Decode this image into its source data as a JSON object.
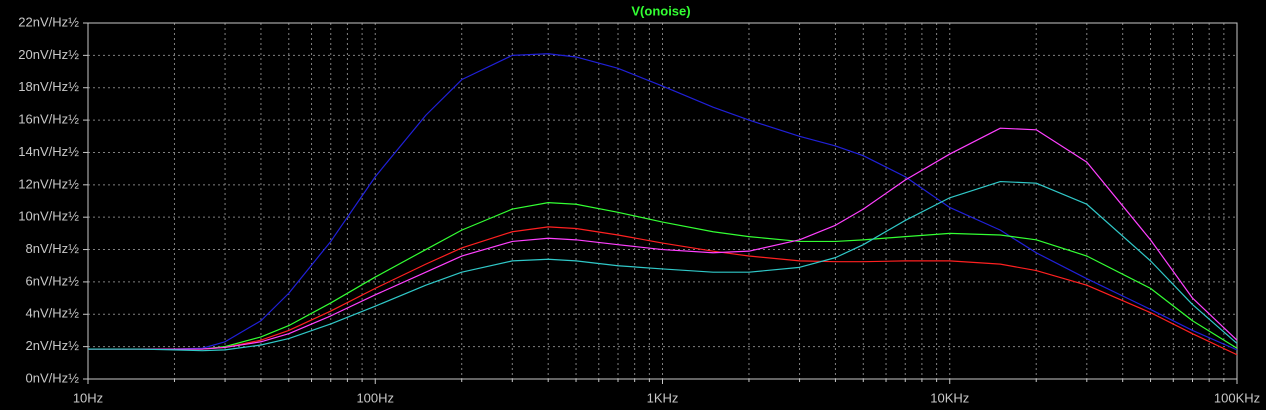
{
  "chart_data": {
    "type": "line",
    "title": "V(onoise)",
    "title_color": "#33ff33",
    "xscale": "log",
    "grid": true,
    "xlim": [
      10,
      100000
    ],
    "xticks": [
      {
        "value": 10,
        "label": "10Hz"
      },
      {
        "value": 100,
        "label": "100Hz"
      },
      {
        "value": 1000,
        "label": "1KHz"
      },
      {
        "value": 10000,
        "label": "10KHz"
      },
      {
        "value": 100000,
        "label": "100KHz"
      }
    ],
    "x_minor_ticks": [
      20,
      30,
      40,
      50,
      60,
      70,
      80,
      90,
      200,
      300,
      400,
      500,
      600,
      700,
      800,
      900,
      2000,
      3000,
      4000,
      5000,
      6000,
      7000,
      8000,
      9000,
      20000,
      30000,
      40000,
      50000,
      60000,
      70000,
      80000,
      90000
    ],
    "ylim": [
      0,
      22
    ],
    "yticks": [
      {
        "value": 0,
        "label": "0nV/Hz½"
      },
      {
        "value": 2,
        "label": "2nV/Hz½"
      },
      {
        "value": 4,
        "label": "4nV/Hz½"
      },
      {
        "value": 6,
        "label": "6nV/Hz½"
      },
      {
        "value": 8,
        "label": "8nV/Hz½"
      },
      {
        "value": 10,
        "label": "10nV/Hz½"
      },
      {
        "value": 12,
        "label": "12nV/Hz½"
      },
      {
        "value": 14,
        "label": "14nV/Hz½"
      },
      {
        "value": 16,
        "label": "16nV/Hz½"
      },
      {
        "value": 18,
        "label": "18nV/Hz½"
      },
      {
        "value": 20,
        "label": "20nV/Hz½"
      },
      {
        "value": 22,
        "label": "22nV/Hz½"
      }
    ],
    "x": [
      10,
      15,
      20,
      25,
      30,
      40,
      50,
      70,
      100,
      150,
      200,
      300,
      400,
      500,
      700,
      1000,
      1500,
      2000,
      3000,
      4000,
      5000,
      7000,
      10000,
      15000,
      20000,
      30000,
      50000,
      70000,
      100000
    ],
    "series": [
      {
        "color": "#2020d8",
        "values": [
          1.85,
          1.85,
          1.85,
          1.9,
          2.3,
          3.6,
          5.3,
          8.5,
          12.5,
          16.3,
          18.5,
          20.0,
          20.1,
          19.9,
          19.2,
          18.1,
          16.8,
          16.0,
          15.0,
          14.4,
          13.8,
          12.5,
          10.6,
          9.2,
          7.8,
          6.2,
          4.3,
          3.0,
          1.8
        ]
      },
      {
        "color": "#33ff33",
        "values": [
          1.85,
          1.85,
          1.85,
          1.85,
          2.0,
          2.6,
          3.3,
          4.7,
          6.3,
          8.0,
          9.2,
          10.5,
          10.9,
          10.8,
          10.3,
          9.7,
          9.1,
          8.8,
          8.5,
          8.5,
          8.6,
          8.8,
          9.0,
          8.9,
          8.6,
          7.6,
          5.6,
          3.6,
          1.9
        ]
      },
      {
        "color": "#ff2020",
        "values": [
          1.85,
          1.85,
          1.85,
          1.85,
          1.95,
          2.4,
          3.0,
          4.2,
          5.6,
          7.1,
          8.1,
          9.1,
          9.4,
          9.3,
          8.9,
          8.4,
          7.9,
          7.6,
          7.3,
          7.25,
          7.25,
          7.3,
          7.3,
          7.1,
          6.7,
          5.8,
          4.1,
          2.8,
          1.5
        ]
      },
      {
        "color": "#ff40ff",
        "values": [
          1.85,
          1.85,
          1.85,
          1.85,
          1.95,
          2.3,
          2.8,
          3.9,
          5.2,
          6.6,
          7.6,
          8.5,
          8.7,
          8.6,
          8.3,
          8.0,
          7.8,
          7.9,
          8.6,
          9.5,
          10.5,
          12.3,
          13.9,
          15.5,
          15.4,
          13.4,
          8.6,
          5.0,
          2.4
        ]
      },
      {
        "color": "#30c8c8",
        "values": [
          1.85,
          1.85,
          1.8,
          1.75,
          1.8,
          2.1,
          2.5,
          3.4,
          4.5,
          5.8,
          6.6,
          7.3,
          7.4,
          7.3,
          7.0,
          6.8,
          6.6,
          6.6,
          6.9,
          7.5,
          8.3,
          9.8,
          11.2,
          12.2,
          12.1,
          10.8,
          7.3,
          4.6,
          2.2
        ]
      }
    ]
  }
}
